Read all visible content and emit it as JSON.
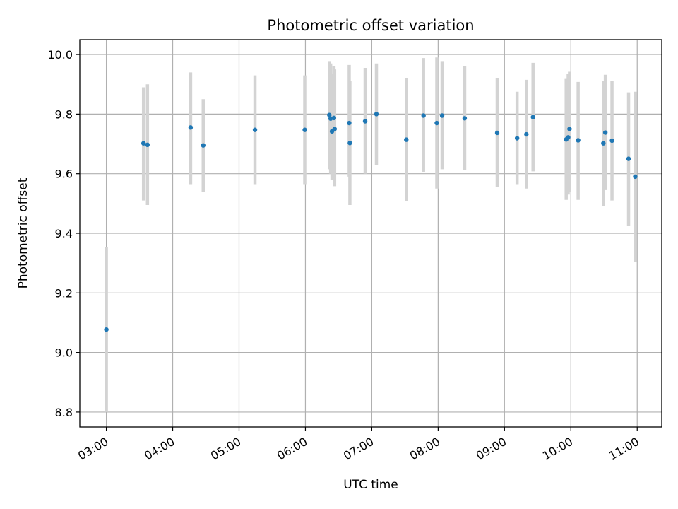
{
  "chart_data": {
    "type": "scatter",
    "title": "Photometric offset variation",
    "xlabel": "UTC time",
    "ylabel": "Photometric offset",
    "x_unit": "UTC time of day (hours)",
    "xlim": [
      2.6,
      11.37
    ],
    "ylim": [
      8.75,
      10.05
    ],
    "grid": true,
    "legend": "none",
    "point_color": "#1f77b4",
    "errorbar_color": "#d3d3d3",
    "x_ticks": [
      {
        "value": 3,
        "label": "03:00"
      },
      {
        "value": 4,
        "label": "04:00"
      },
      {
        "value": 5,
        "label": "05:00"
      },
      {
        "value": 6,
        "label": "06:00"
      },
      {
        "value": 7,
        "label": "07:00"
      },
      {
        "value": 8,
        "label": "08:00"
      },
      {
        "value": 9,
        "label": "09:00"
      },
      {
        "value": 10,
        "label": "10:00"
      },
      {
        "value": 11,
        "label": "11:00"
      }
    ],
    "y_ticks": [
      {
        "value": 8.8,
        "label": "8.8"
      },
      {
        "value": 9.0,
        "label": "9.0"
      },
      {
        "value": 9.2,
        "label": "9.2"
      },
      {
        "value": 9.4,
        "label": "9.4"
      },
      {
        "value": 9.6,
        "label": "9.6"
      },
      {
        "value": 9.8,
        "label": "9.8"
      },
      {
        "value": 10.0,
        "label": "10.0"
      }
    ],
    "points": [
      {
        "x": 3.0,
        "y": 9.077,
        "low": 8.8,
        "high": 9.355
      },
      {
        "x": 3.56,
        "y": 9.702,
        "low": 9.51,
        "high": 9.89
      },
      {
        "x": 3.62,
        "y": 9.697,
        "low": 9.495,
        "high": 9.9
      },
      {
        "x": 4.27,
        "y": 9.755,
        "low": 9.565,
        "high": 9.94
      },
      {
        "x": 4.46,
        "y": 9.695,
        "low": 9.538,
        "high": 9.85
      },
      {
        "x": 5.24,
        "y": 9.747,
        "low": 9.565,
        "high": 9.93
      },
      {
        "x": 5.99,
        "y": 9.747,
        "low": 9.565,
        "high": 9.93
      },
      {
        "x": 6.36,
        "y": 9.797,
        "low": 9.615,
        "high": 9.978
      },
      {
        "x": 6.38,
        "y": 9.785,
        "low": 9.6,
        "high": 9.97
      },
      {
        "x": 6.4,
        "y": 9.742,
        "low": 9.58,
        "high": 9.935
      },
      {
        "x": 6.43,
        "y": 9.787,
        "low": 9.595,
        "high": 9.96
      },
      {
        "x": 6.44,
        "y": 9.75,
        "low": 9.558,
        "high": 9.95
      },
      {
        "x": 6.66,
        "y": 9.77,
        "low": 9.59,
        "high": 9.965
      },
      {
        "x": 6.67,
        "y": 9.703,
        "low": 9.495,
        "high": 9.91
      },
      {
        "x": 6.9,
        "y": 9.776,
        "low": 9.6,
        "high": 9.955
      },
      {
        "x": 7.07,
        "y": 9.8,
        "low": 9.628,
        "high": 9.97
      },
      {
        "x": 7.52,
        "y": 9.714,
        "low": 9.508,
        "high": 9.922
      },
      {
        "x": 7.78,
        "y": 9.795,
        "low": 9.605,
        "high": 9.988
      },
      {
        "x": 7.98,
        "y": 9.77,
        "low": 9.55,
        "high": 9.99
      },
      {
        "x": 8.06,
        "y": 9.795,
        "low": 9.615,
        "high": 9.978
      },
      {
        "x": 8.4,
        "y": 9.786,
        "low": 9.612,
        "high": 9.96
      },
      {
        "x": 8.89,
        "y": 9.737,
        "low": 9.555,
        "high": 9.922
      },
      {
        "x": 9.19,
        "y": 9.719,
        "low": 9.565,
        "high": 9.875
      },
      {
        "x": 9.33,
        "y": 9.732,
        "low": 9.55,
        "high": 9.915
      },
      {
        "x": 9.43,
        "y": 9.79,
        "low": 9.608,
        "high": 9.972
      },
      {
        "x": 9.93,
        "y": 9.715,
        "low": 9.512,
        "high": 9.918
      },
      {
        "x": 9.96,
        "y": 9.722,
        "low": 9.53,
        "high": 9.935
      },
      {
        "x": 9.98,
        "y": 9.75,
        "low": 9.54,
        "high": 9.942
      },
      {
        "x": 10.11,
        "y": 9.712,
        "low": 9.512,
        "high": 9.908
      },
      {
        "x": 10.49,
        "y": 9.702,
        "low": 9.492,
        "high": 9.912
      },
      {
        "x": 10.52,
        "y": 9.738,
        "low": 9.545,
        "high": 9.932
      },
      {
        "x": 10.62,
        "y": 9.711,
        "low": 9.51,
        "high": 9.912
      },
      {
        "x": 10.87,
        "y": 9.65,
        "low": 9.425,
        "high": 9.873
      },
      {
        "x": 10.97,
        "y": 9.59,
        "low": 9.305,
        "high": 9.875
      }
    ]
  }
}
